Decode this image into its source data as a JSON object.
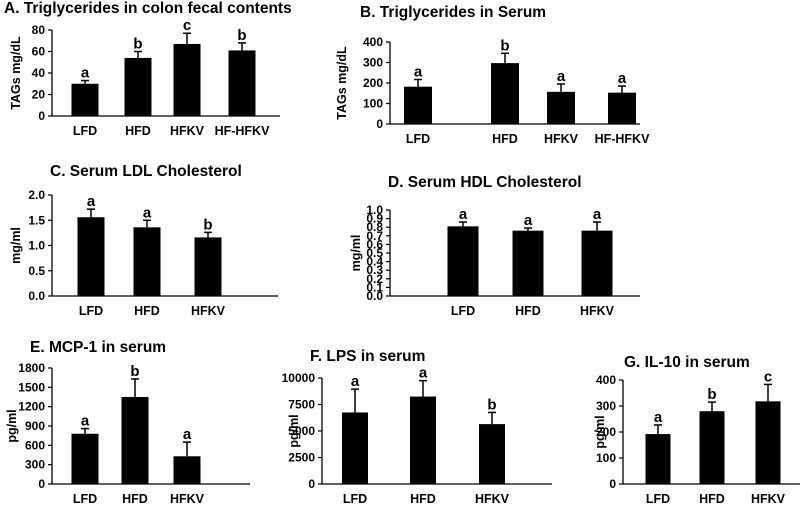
{
  "chart_data": [
    {
      "id": "A",
      "type": "bar",
      "title": "A. Triglycerides in colon fecal contents",
      "ylabel": "TAGs mg/dL",
      "xlabel": "",
      "categories": [
        "LFD",
        "HFD",
        "HFKV",
        "HF-HFKV"
      ],
      "values": [
        30,
        54,
        67,
        61
      ],
      "errors": [
        3,
        6,
        10,
        7
      ],
      "letters": [
        "a",
        "b",
        "c",
        "b"
      ],
      "ylim": [
        0,
        80
      ],
      "ticks": [
        0,
        20,
        40,
        60,
        80
      ],
      "tick_labels": [
        "0",
        "20",
        "40",
        "60",
        "80"
      ]
    },
    {
      "id": "B",
      "type": "bar",
      "title": "B. Triglycerides in Serum",
      "ylabel": "TAGs mg/dL",
      "xlabel": "",
      "categories": [
        "LFD",
        "HFD",
        "HFKV",
        "HF-HFKV"
      ],
      "values": [
        182,
        297,
        157,
        153
      ],
      "errors": [
        35,
        48,
        38,
        32
      ],
      "letters": [
        "a",
        "b",
        "a",
        "a"
      ],
      "ylim": [
        0,
        400
      ],
      "ticks": [
        0,
        100,
        200,
        300,
        400
      ],
      "tick_labels": [
        "0",
        "100",
        "200",
        "300",
        "400"
      ]
    },
    {
      "id": "C",
      "type": "bar",
      "title": "C. Serum LDL Cholesterol",
      "ylabel": "mg/ml",
      "xlabel": "",
      "categories": [
        "LFD",
        "HFD",
        "HFKV"
      ],
      "values": [
        1.56,
        1.36,
        1.16
      ],
      "errors": [
        0.16,
        0.14,
        0.1
      ],
      "letters": [
        "a",
        "a",
        "b"
      ],
      "ylim": [
        0,
        2.0
      ],
      "ticks": [
        0,
        0.5,
        1.0,
        1.5,
        2.0
      ],
      "tick_labels": [
        "0.0",
        "0.5",
        "1.0",
        "1.5",
        "2.0"
      ]
    },
    {
      "id": "D",
      "type": "bar",
      "title": "D. Serum HDL Cholesterol",
      "ylabel": "mg/ml",
      "xlabel": "",
      "categories": [
        "LFD",
        "HFD",
        "HFKV"
      ],
      "values": [
        0.81,
        0.76,
        0.76
      ],
      "errors": [
        0.05,
        0.03,
        0.1
      ],
      "letters": [
        "a",
        "a",
        "a"
      ],
      "ylim": [
        0,
        1.0
      ],
      "ticks": [
        0,
        0.1,
        0.2,
        0.3,
        0.4,
        0.5,
        0.6,
        0.7,
        0.8,
        0.9,
        1.0
      ],
      "tick_labels": [
        "0.0",
        "0.1",
        "0.2",
        "0.3",
        "0.4",
        "0.5",
        "0.6",
        "0.7",
        "0.8",
        "0.9",
        "1.0"
      ]
    },
    {
      "id": "E",
      "type": "bar",
      "title": "E. MCP-1 in serum",
      "ylabel": "pg/ml",
      "xlabel": "",
      "categories": [
        "LFD",
        "HFD",
        "HFKV"
      ],
      "values": [
        780,
        1350,
        430
      ],
      "errors": [
        80,
        280,
        220
      ],
      "letters": [
        "a",
        "b",
        "a"
      ],
      "ylim": [
        0,
        1800
      ],
      "ticks": [
        0,
        300,
        600,
        900,
        1200,
        1500,
        1800
      ],
      "tick_labels": [
        "0",
        "300",
        "600",
        "900",
        "1200",
        "1500",
        "1800"
      ]
    },
    {
      "id": "F",
      "type": "bar",
      "title": "F. LPS in serum",
      "ylabel": "pg/ml",
      "xlabel": "",
      "categories": [
        "LFD",
        "HFD",
        "HFKV"
      ],
      "values": [
        6750,
        8250,
        5650
      ],
      "errors": [
        2200,
        1500,
        1100
      ],
      "letters": [
        "a",
        "a",
        "b"
      ],
      "ylim": [
        0,
        10000
      ],
      "ticks": [
        0,
        2500,
        5000,
        7500,
        10000
      ],
      "tick_labels": [
        "0",
        "2500",
        "5000",
        "7500",
        "10000"
      ]
    },
    {
      "id": "G",
      "type": "bar",
      "title": "G. IL-10 in serum",
      "ylabel": "pg/ml",
      "xlabel": "",
      "categories": [
        "LFD",
        "HFD",
        "HFKV"
      ],
      "values": [
        192,
        280,
        318
      ],
      "errors": [
        35,
        35,
        65
      ],
      "letters": [
        "a",
        "b",
        "c"
      ],
      "ylim": [
        0,
        400
      ],
      "ticks": [
        0,
        100,
        200,
        300,
        400
      ],
      "tick_labels": [
        "0",
        "100",
        "200",
        "300",
        "400"
      ]
    }
  ],
  "colors": {
    "bar": "#000000",
    "axis": "#000000",
    "text": "#000000"
  }
}
